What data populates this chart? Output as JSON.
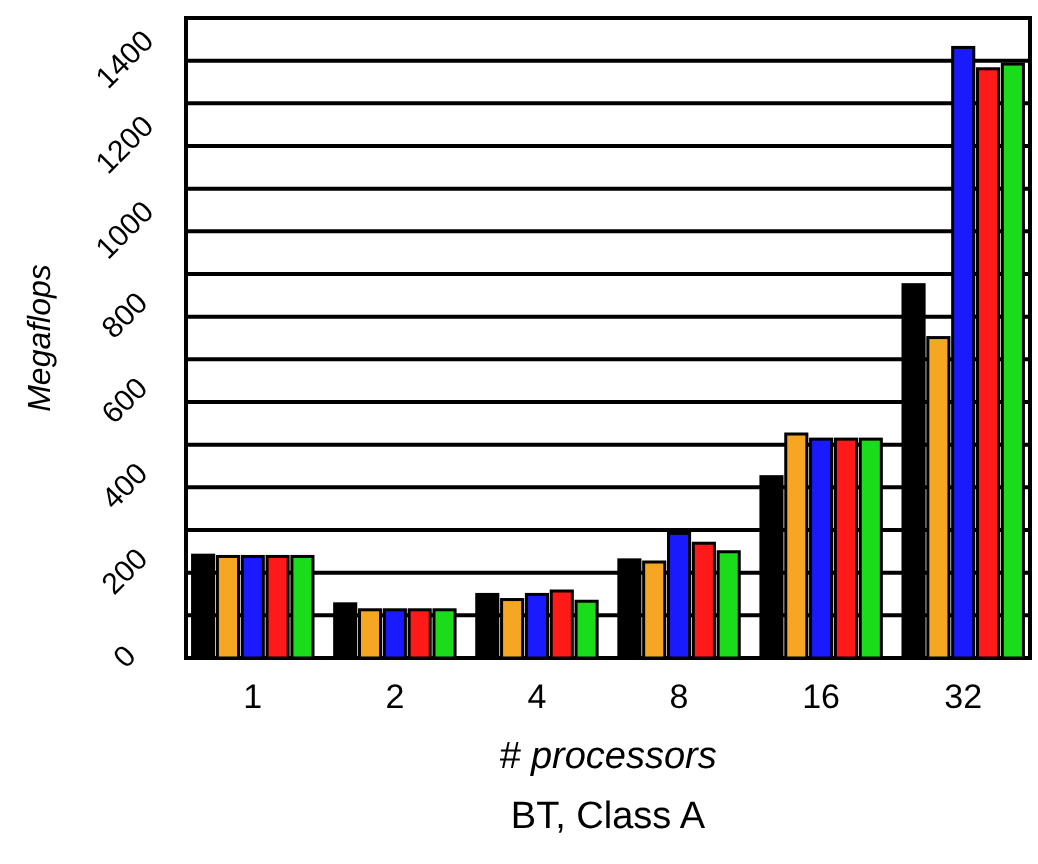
{
  "chart_data": {
    "type": "bar",
    "title": "BT, Class A",
    "xlabel": "# processors",
    "ylabel": "Megaflops",
    "categories": [
      "1",
      "2",
      "4",
      "8",
      "16",
      "32"
    ],
    "series": [
      {
        "color": "#000000",
        "values": [
          241,
          127,
          149,
          230,
          425,
          875
        ]
      },
      {
        "color": "#f5a623",
        "values": [
          238,
          113,
          137,
          225,
          525,
          751
        ]
      },
      {
        "color": "#1a1aff",
        "values": [
          238,
          113,
          149,
          292,
          513,
          1431
        ]
      },
      {
        "color": "#ff1a1a",
        "values": [
          238,
          113,
          157,
          269,
          513,
          1381
        ]
      },
      {
        "color": "#1adc1a",
        "values": [
          238,
          113,
          133,
          249,
          513,
          1392
        ]
      }
    ],
    "ylim": [
      0,
      1500
    ],
    "yticks": [
      0,
      {
        "value": 100,
        "label": null
      },
      200,
      {
        "value": 300,
        "label": null
      },
      400,
      {
        "value": 500,
        "label": null
      },
      600,
      {
        "value": 700,
        "label": null
      },
      800,
      {
        "value": 900,
        "label": null
      },
      1000,
      {
        "value": 1100,
        "label": null
      },
      1200,
      {
        "value": 1300,
        "label": null
      },
      1400
    ],
    "grid": "y"
  }
}
